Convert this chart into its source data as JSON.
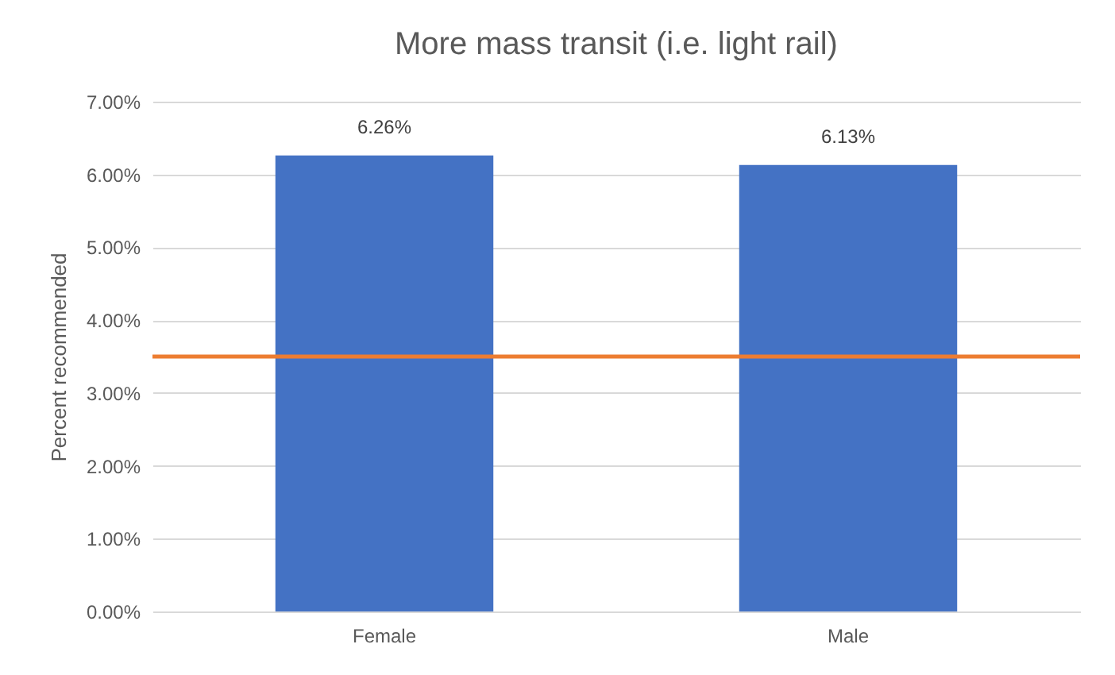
{
  "chart_data": {
    "type": "bar",
    "title": "More mass transit (i.e. light rail)",
    "ylabel": "Percent recommended",
    "categories": [
      "Female",
      "Male"
    ],
    "values": [
      6.26,
      6.13
    ],
    "color": "#4472c4",
    "value_labels": [
      "6.26%",
      "6.13%"
    ],
    "ylim": [
      0,
      7
    ],
    "yticks": [
      {
        "value": 0,
        "label": "0.00%"
      },
      {
        "value": 1,
        "label": "1.00%"
      },
      {
        "value": 2,
        "label": "2.00%"
      },
      {
        "value": 3,
        "label": "3.00%"
      },
      {
        "value": 4,
        "label": "4.00%"
      },
      {
        "value": 5,
        "label": "5.00%"
      },
      {
        "value": 6,
        "label": "6.00%"
      },
      {
        "value": 7,
        "label": "7.00%"
      }
    ],
    "ref_lines": [
      {
        "axis": "y",
        "value": 3.5,
        "color": "#ed7d31"
      }
    ],
    "grid": "y"
  }
}
